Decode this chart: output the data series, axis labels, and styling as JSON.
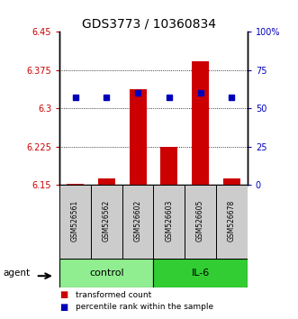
{
  "title": "GDS3773 / 10360834",
  "samples": [
    "GSM526561",
    "GSM526562",
    "GSM526602",
    "GSM526603",
    "GSM526605",
    "GSM526678"
  ],
  "groups": [
    "control",
    "control",
    "control",
    "IL-6",
    "IL-6",
    "IL-6"
  ],
  "control_color": "#90EE90",
  "il6_color": "#32CD32",
  "bar_values": [
    6.152,
    6.163,
    6.338,
    6.225,
    6.392,
    6.163
  ],
  "bar_base": 6.15,
  "percentile_values": [
    6.322,
    6.322,
    6.33,
    6.322,
    6.33,
    6.322
  ],
  "ylim_left": [
    6.15,
    6.45
  ],
  "ylim_right": [
    0,
    100
  ],
  "yticks_left": [
    6.15,
    6.225,
    6.3,
    6.375,
    6.45
  ],
  "yticks_right": [
    0,
    25,
    50,
    75,
    100
  ],
  "ytick_labels_left": [
    "6.15",
    "6.225",
    "6.3",
    "6.375",
    "6.45"
  ],
  "ytick_labels_right": [
    "0",
    "25",
    "50",
    "75",
    "100%"
  ],
  "grid_values": [
    6.225,
    6.3,
    6.375
  ],
  "bar_color": "#CC0000",
  "percentile_color": "#0000BB",
  "legend_red": "transformed count",
  "legend_blue": "percentile rank within the sample",
  "agent_label": "agent",
  "sample_box_color": "#CCCCCC",
  "n_control": 3,
  "n_il6": 3
}
